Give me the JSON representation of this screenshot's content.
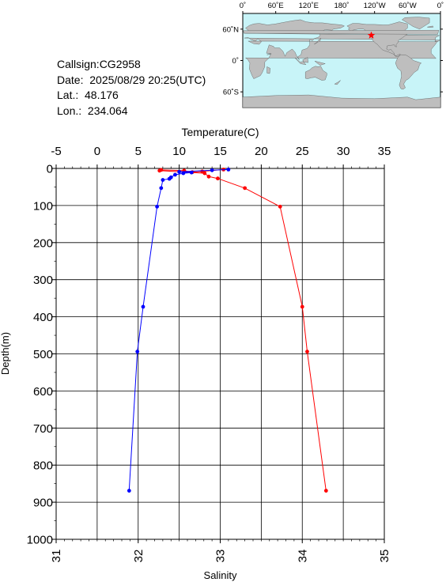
{
  "info": {
    "callsign": "Callsign:CG2958",
    "date": "Date:  2025/08/29 20:25(UTC)",
    "lat": "Lat.:  48.176",
    "lon": "Lon.:  234.064"
  },
  "map": {
    "lon_labels": [
      "0˚",
      "60˚E",
      "120˚E",
      "180˚",
      "120˚W",
      "60˚W",
      "0˚"
    ],
    "lat_labels": [
      "60˚N",
      "0˚",
      "60˚S"
    ],
    "ocean_color": "#c8f4f8",
    "land_color": "#bebebe",
    "marker_color": "#ff0000",
    "marker_lat": 48.176,
    "marker_lon": 234.064
  },
  "chart_data": {
    "type": "line",
    "ylabel": "Depth(m)",
    "ylim": [
      0,
      1000
    ],
    "y_inverted": true,
    "y_ticks": [
      "0",
      "100",
      "200",
      "300",
      "400",
      "500",
      "600",
      "700",
      "800",
      "900",
      "1000"
    ],
    "top_axis": {
      "label": "Temperature(C)",
      "range": [
        -5,
        35
      ],
      "ticks": [
        "-5",
        "0",
        "5",
        "10",
        "15",
        "20",
        "25",
        "30",
        "35"
      ]
    },
    "bottom_axis": {
      "label": "Salinity",
      "range": [
        31,
        35
      ],
      "ticks": [
        "31",
        "32",
        "33",
        "34",
        "35"
      ]
    },
    "grid": true,
    "series": [
      {
        "axis": "temperature",
        "color": "#ff0000",
        "points": [
          {
            "x": 15.4,
            "depth": 3
          },
          {
            "x": 12.8,
            "depth": 8
          },
          {
            "x": 11.6,
            "depth": 10
          },
          {
            "x": 10.6,
            "depth": 6
          },
          {
            "x": 7.8,
            "depth": 4
          },
          {
            "x": 7.6,
            "depth": 6
          },
          {
            "x": 13.1,
            "depth": 13
          },
          {
            "x": 13.6,
            "depth": 22
          },
          {
            "x": 14.7,
            "depth": 27
          },
          {
            "x": 18.0,
            "depth": 53
          },
          {
            "x": 22.3,
            "depth": 103
          },
          {
            "x": 25.0,
            "depth": 373
          },
          {
            "x": 25.6,
            "depth": 494
          },
          {
            "x": 27.9,
            "depth": 869
          }
        ]
      },
      {
        "axis": "salinity",
        "color": "#0000ff",
        "points": [
          {
            "x": 33.1,
            "depth": 3
          },
          {
            "x": 32.9,
            "depth": 5
          },
          {
            "x": 32.5,
            "depth": 9
          },
          {
            "x": 32.65,
            "depth": 11
          },
          {
            "x": 32.55,
            "depth": 13
          },
          {
            "x": 32.45,
            "depth": 17
          },
          {
            "x": 32.4,
            "depth": 24
          },
          {
            "x": 32.38,
            "depth": 28
          },
          {
            "x": 32.3,
            "depth": 31
          },
          {
            "x": 32.28,
            "depth": 53
          },
          {
            "x": 32.23,
            "depth": 103
          },
          {
            "x": 32.06,
            "depth": 373
          },
          {
            "x": 31.99,
            "depth": 494
          },
          {
            "x": 31.89,
            "depth": 869
          }
        ]
      }
    ]
  }
}
